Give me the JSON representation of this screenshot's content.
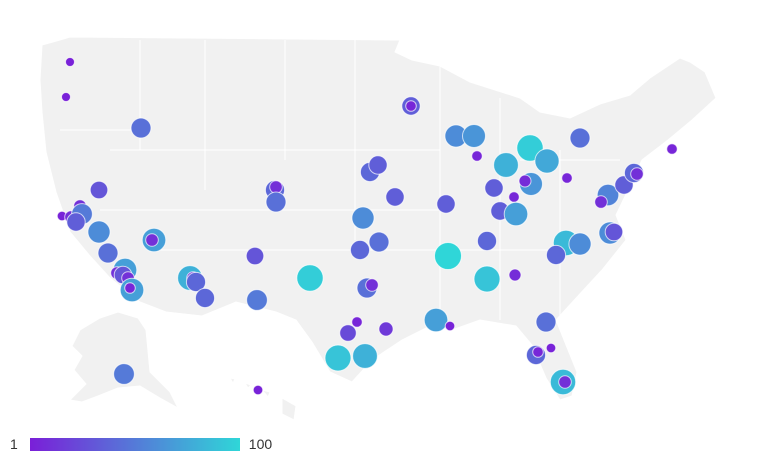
{
  "legend": {
    "min_label": "1",
    "max_label": "100",
    "min": 1,
    "max": 100,
    "color_min": "#7a1fd8",
    "color_max": "#2fd6d8"
  },
  "map": {
    "land_color": "#f1f1f1",
    "border_color": "#ffffff"
  },
  "markers": [
    2,
    2,
    45,
    35,
    5,
    60,
    65,
    5,
    95,
    80,
    75,
    65,
    45,
    5,
    5,
    35,
    5,
    35,
    70,
    8,
    40,
    35,
    35,
    40,
    10,
    45,
    30,
    3,
    10,
    10,
    50,
    35,
    60,
    45,
    70,
    10,
    60,
    40,
    45,
    35,
    40,
    30,
    95,
    100,
    90,
    8,
    85,
    60,
    40,
    60,
    30,
    55,
    10,
    35,
    40,
    10,
    70,
    10,
    30,
    10,
    70,
    5,
    80,
    10,
    40,
    40,
    50,
    45,
    10,
    25,
    5,
    15,
    70,
    3,
    45,
    90,
    80,
    40,
    5,
    3,
    85,
    10,
    50,
    3
  ]
}
